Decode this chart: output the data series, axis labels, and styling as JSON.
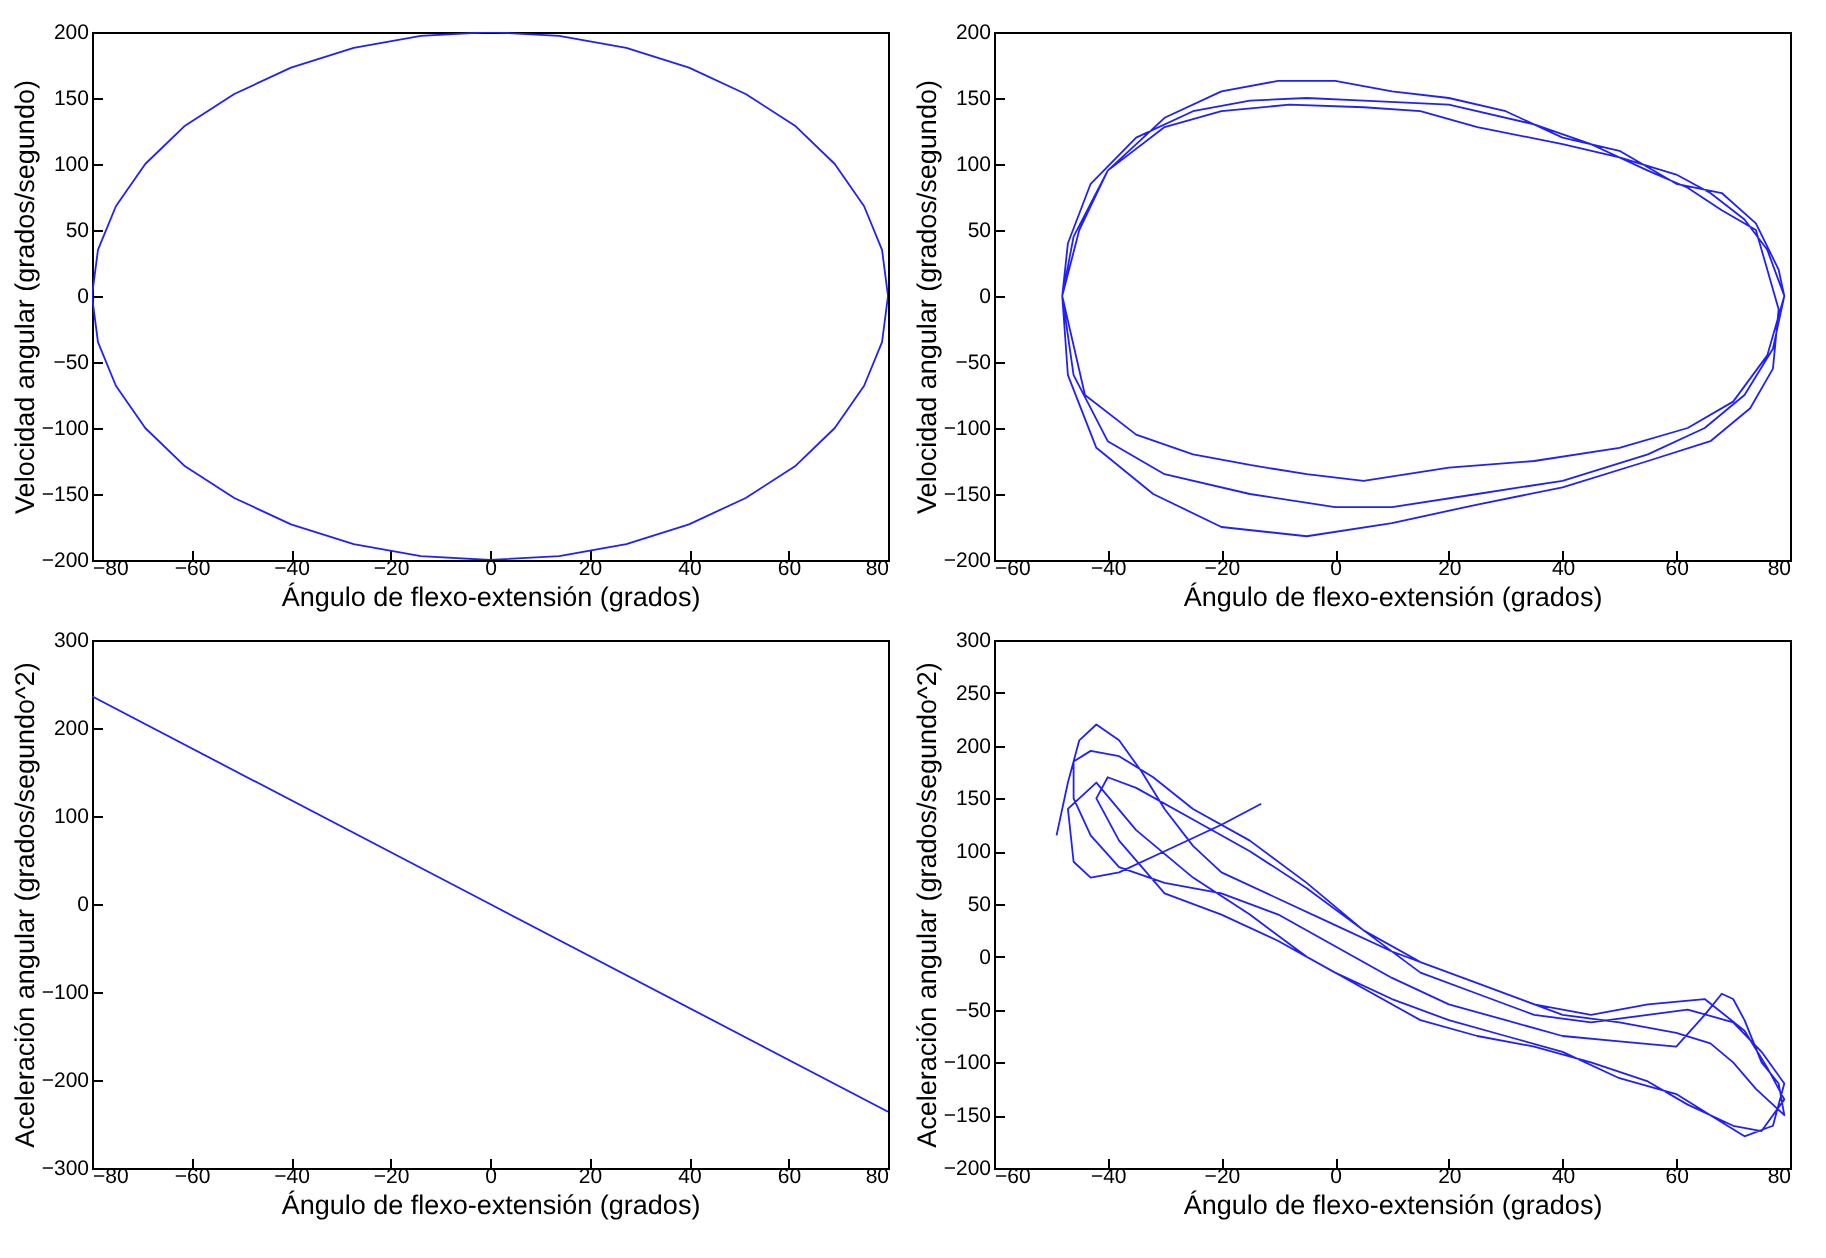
{
  "chart_data": [
    {
      "type": "line",
      "xlabel": "Ángulo de flexo-extensión (grados)",
      "ylabel": "Velocidad angular (grados/segundo)",
      "xlim": [
        -80,
        80
      ],
      "ylim": [
        -200,
        200
      ],
      "xticks": [
        -80,
        -60,
        -40,
        -20,
        0,
        20,
        40,
        60,
        80
      ],
      "yticks": [
        -200,
        -150,
        -100,
        -50,
        0,
        50,
        100,
        150,
        200
      ],
      "grid": false,
      "series": [
        {
          "color": "#2020ff",
          "x": [
            80,
            78.8,
            75.2,
            69.3,
            61.3,
            51.4,
            40,
            27.4,
            13.9,
            0,
            -13.9,
            -27.4,
            -40,
            -51.4,
            -61.3,
            -69.3,
            -75.2,
            -78.8,
            -80,
            -78.8,
            -75.2,
            -69.3,
            -61.3,
            -51.4,
            -40,
            -27.4,
            -13.9,
            0,
            13.9,
            27.4,
            40,
            51.4,
            61.3,
            69.3,
            75.2,
            78.8,
            80,
            78.8
          ],
          "values": [
            0,
            35,
            68,
            100,
            129,
            153,
            173,
            188,
            197,
            200,
            197,
            188,
            173,
            153,
            129,
            100,
            68,
            35,
            0,
            -35,
            -68,
            -100,
            -129,
            -153,
            -173,
            -188,
            -197,
            -200,
            -197,
            -188,
            -173,
            -153,
            -129,
            -100,
            -68,
            -35,
            0,
            35
          ]
        }
      ]
    },
    {
      "type": "line",
      "xlabel": "Ángulo de flexo-extensión (grados)",
      "ylabel": "Velocidad angular (grados/segundo)",
      "xlim": [
        -60,
        80
      ],
      "ylim": [
        -200,
        200
      ],
      "xticks": [
        -60,
        -40,
        -20,
        0,
        20,
        40,
        60,
        80
      ],
      "yticks": [
        -200,
        -150,
        -100,
        -50,
        0,
        50,
        100,
        150,
        200
      ],
      "grid": false,
      "series": [
        {
          "color": "#2020ff",
          "x": [
            -48,
            -45,
            -40,
            -30,
            -20,
            -10,
            0,
            10,
            20,
            30,
            40,
            50,
            60,
            68,
            74,
            78,
            79,
            77,
            72,
            65,
            55,
            40,
            25,
            10,
            0,
            -15,
            -30,
            -40,
            -46,
            -48,
            -47,
            -43,
            -35,
            -25,
            -15,
            -5,
            5,
            20,
            35,
            45,
            55,
            62,
            68,
            74,
            76,
            78,
            77,
            73,
            66,
            55,
            40,
            25,
            10,
            -5,
            -20,
            -32,
            -42,
            -47,
            -48,
            -46,
            -40,
            -30,
            -20,
            -8,
            5,
            15,
            25,
            40,
            50,
            60,
            66,
            72,
            76,
            79,
            76,
            70,
            62,
            50,
            35,
            20,
            5,
            -5,
            -15,
            -25,
            -35,
            -44,
            -48,
            -47
          ],
          "values": [
            0,
            50,
            95,
            135,
            155,
            163,
            163,
            155,
            150,
            140,
            120,
            110,
            85,
            78,
            55,
            20,
            0,
            -40,
            -75,
            -100,
            -120,
            -140,
            -150,
            -160,
            -160,
            -150,
            -135,
            -110,
            -60,
            0,
            40,
            85,
            120,
            140,
            148,
            150,
            148,
            145,
            130,
            115,
            95,
            82,
            65,
            50,
            20,
            -10,
            -55,
            -85,
            -110,
            -125,
            -145,
            -158,
            -172,
            -182,
            -175,
            -150,
            -115,
            -60,
            0,
            45,
            95,
            128,
            140,
            145,
            143,
            140,
            128,
            115,
            105,
            92,
            78,
            58,
            35,
            0,
            -45,
            -80,
            -100,
            -115,
            -125,
            -130,
            -140,
            -135,
            -128,
            -120,
            -105,
            -75,
            0,
            40
          ]
        }
      ]
    },
    {
      "type": "line",
      "xlabel": "Ángulo de flexo-extensión (grados)",
      "ylabel": "Aceleración angular (grados/segundo^2)",
      "xlim": [
        -80,
        80
      ],
      "ylim": [
        -300,
        300
      ],
      "xticks": [
        -80,
        -60,
        -40,
        -20,
        0,
        20,
        40,
        60,
        80
      ],
      "yticks": [
        -300,
        -200,
        -100,
        0,
        100,
        200,
        300
      ],
      "grid": false,
      "series": [
        {
          "color": "#2020ff",
          "x": [
            -80,
            0,
            80
          ],
          "values": [
            236,
            0,
            -236
          ]
        }
      ]
    },
    {
      "type": "line",
      "xlabel": "Ángulo de flexo-extensión (grados)",
      "ylabel": "Aceleración angular (grados/segundo^2)",
      "xlim": [
        -60,
        80
      ],
      "ylim": [
        -200,
        300
      ],
      "xticks": [
        -60,
        -40,
        -20,
        0,
        20,
        40,
        60,
        80
      ],
      "yticks": [
        -200,
        -150,
        -100,
        -50,
        0,
        50,
        100,
        150,
        200,
        250,
        300
      ],
      "grid": false,
      "series": [
        {
          "color": "#2020ff",
          "x": [
            -49,
            -47,
            -45,
            -42,
            -38,
            -34,
            -30,
            -25,
            -20,
            -10,
            0,
            10,
            20,
            30,
            40,
            50,
            60,
            66,
            70,
            74,
            77,
            79,
            78,
            75,
            72,
            70,
            68,
            65,
            60,
            50,
            40,
            30,
            20,
            10,
            0,
            -10,
            -20,
            -30,
            -38,
            -43,
            -46,
            -46,
            -43,
            -38,
            -32,
            -25,
            -15,
            -5,
            5,
            15,
            25,
            35,
            45,
            55,
            62,
            70,
            75,
            79,
            77,
            72,
            66,
            60,
            50,
            40,
            30,
            20,
            10,
            0,
            -10,
            -20,
            -30,
            -38,
            -42,
            -40,
            -35,
            -25,
            -15,
            -5,
            5,
            15,
            25,
            35,
            45,
            55,
            65,
            72,
            76,
            79,
            75,
            70,
            62,
            55,
            45,
            35,
            25,
            15,
            5,
            -5,
            -15,
            -25,
            -35,
            -42,
            -47,
            -46,
            -43,
            -38,
            -30,
            -20,
            -13
          ],
          "values": [
            115,
            165,
            205,
            220,
            205,
            175,
            140,
            105,
            80,
            55,
            30,
            5,
            -15,
            -35,
            -55,
            -62,
            -72,
            -82,
            -100,
            -125,
            -140,
            -150,
            -120,
            -100,
            -60,
            -40,
            -35,
            -55,
            -85,
            -80,
            -75,
            -60,
            -45,
            -20,
            10,
            40,
            60,
            70,
            85,
            115,
            150,
            185,
            195,
            190,
            170,
            140,
            110,
            70,
            25,
            -15,
            -35,
            -55,
            -62,
            -55,
            -50,
            -62,
            -90,
            -120,
            -160,
            -170,
            -150,
            -130,
            -115,
            -90,
            -75,
            -60,
            -40,
            -15,
            15,
            40,
            60,
            110,
            150,
            170,
            160,
            130,
            100,
            65,
            25,
            -5,
            -25,
            -45,
            -55,
            -45,
            -40,
            -70,
            -105,
            -135,
            -165,
            -160,
            -140,
            -118,
            -100,
            -85,
            -75,
            -60,
            -30,
            0,
            40,
            75,
            120,
            165,
            140,
            90,
            75,
            80,
            100,
            125,
            145
          ]
        }
      ]
    }
  ]
}
